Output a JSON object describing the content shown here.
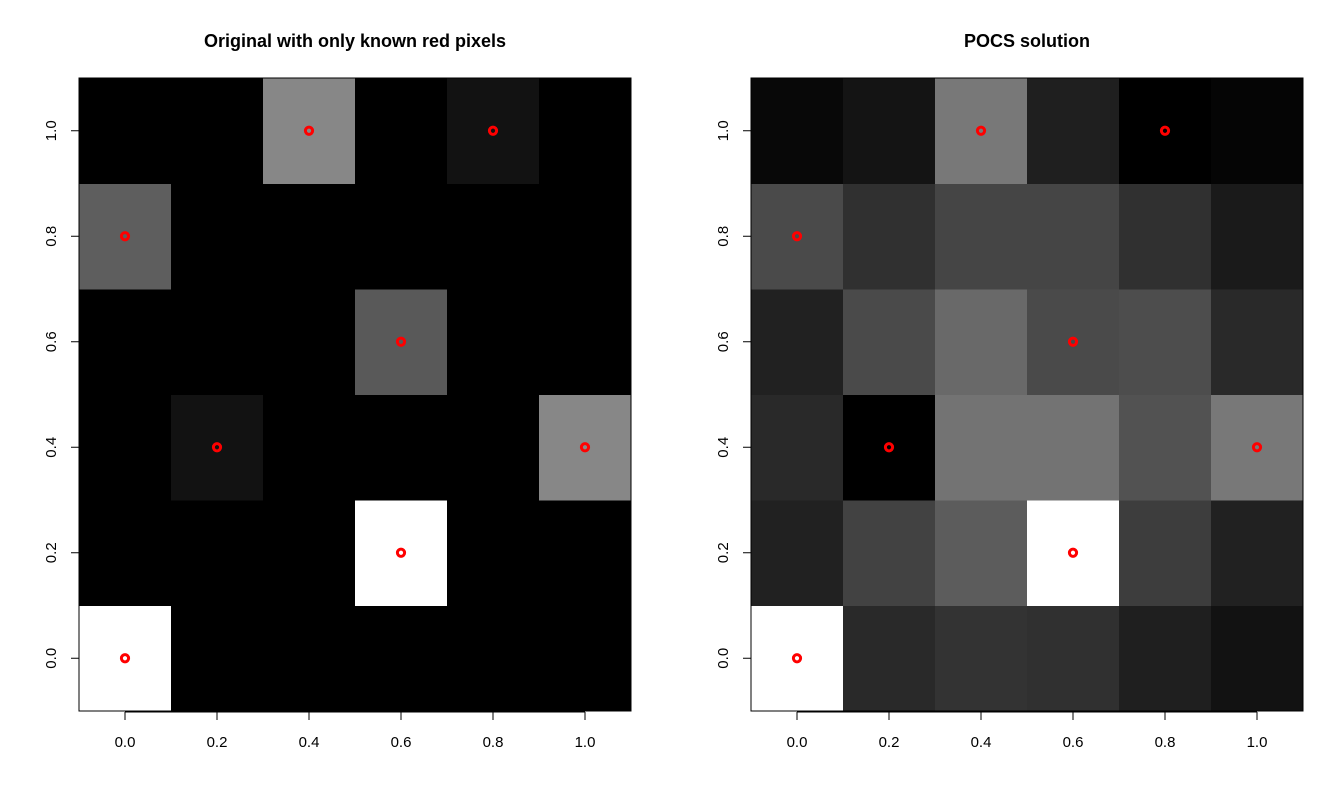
{
  "chart_data": [
    {
      "type": "heatmap",
      "title": "Original with only known red pixels",
      "xlabel": "",
      "ylabel": "",
      "x": [
        0.0,
        0.2,
        0.4,
        0.6,
        0.8,
        1.0
      ],
      "y": [
        0.0,
        0.2,
        0.4,
        0.6,
        0.8,
        1.0
      ],
      "xlim": [
        -0.1,
        1.1
      ],
      "ylim": [
        -0.1,
        1.1
      ],
      "xticks": [
        "0.0",
        "0.2",
        "0.4",
        "0.6",
        "0.8",
        "1.0"
      ],
      "yticks": [
        "0.0",
        "0.2",
        "0.4",
        "0.6",
        "0.8",
        "1.0"
      ],
      "color_scale": "grayscale (black = low, white = high)",
      "values": [
        [
          1.0,
          0.0,
          0.0,
          0.0,
          0.0,
          0.0
        ],
        [
          0.0,
          0.0,
          0.0,
          1.0,
          0.0,
          0.0
        ],
        [
          0.0,
          0.07,
          0.0,
          0.0,
          0.0,
          0.53
        ],
        [
          0.0,
          0.0,
          0.0,
          0.35,
          0.0,
          0.0
        ],
        [
          0.37,
          0.0,
          0.0,
          0.0,
          0.0,
          0.0
        ],
        [
          0.0,
          0.0,
          0.53,
          0.0,
          0.07,
          0.0
        ]
      ],
      "points": [
        [
          0.0,
          0.0
        ],
        [
          0.6,
          0.2
        ],
        [
          0.2,
          0.4
        ],
        [
          1.0,
          0.4
        ],
        [
          0.6,
          0.6
        ],
        [
          0.0,
          0.8
        ],
        [
          0.4,
          1.0
        ],
        [
          0.8,
          1.0
        ]
      ],
      "point_color": "#ff0000"
    },
    {
      "type": "heatmap",
      "title": "POCS solution",
      "xlabel": "",
      "ylabel": "",
      "x": [
        0.0,
        0.2,
        0.4,
        0.6,
        0.8,
        1.0
      ],
      "y": [
        0.0,
        0.2,
        0.4,
        0.6,
        0.8,
        1.0
      ],
      "xlim": [
        -0.1,
        1.1
      ],
      "ylim": [
        -0.1,
        1.1
      ],
      "xticks": [
        "0.0",
        "0.2",
        "0.4",
        "0.6",
        "0.8",
        "1.0"
      ],
      "yticks": [
        "0.0",
        "0.2",
        "0.4",
        "0.6",
        "0.8",
        "1.0"
      ],
      "color_scale": "grayscale (black = low, white = high)",
      "values": [
        [
          1.0,
          0.16,
          0.2,
          0.19,
          0.12,
          0.07
        ],
        [
          0.13,
          0.26,
          0.36,
          1.0,
          0.24,
          0.13
        ],
        [
          0.16,
          0.0,
          0.45,
          0.45,
          0.32,
          0.47
        ],
        [
          0.13,
          0.29,
          0.41,
          0.29,
          0.3,
          0.16
        ],
        [
          0.29,
          0.19,
          0.27,
          0.27,
          0.19,
          0.1
        ],
        [
          0.03,
          0.08,
          0.47,
          0.12,
          0.0,
          0.02
        ]
      ],
      "points": [
        [
          0.0,
          0.0
        ],
        [
          0.6,
          0.2
        ],
        [
          0.2,
          0.4
        ],
        [
          1.0,
          0.4
        ],
        [
          0.6,
          0.6
        ],
        [
          0.0,
          0.8
        ],
        [
          0.4,
          1.0
        ],
        [
          0.8,
          1.0
        ]
      ],
      "point_color": "#ff0000"
    }
  ]
}
